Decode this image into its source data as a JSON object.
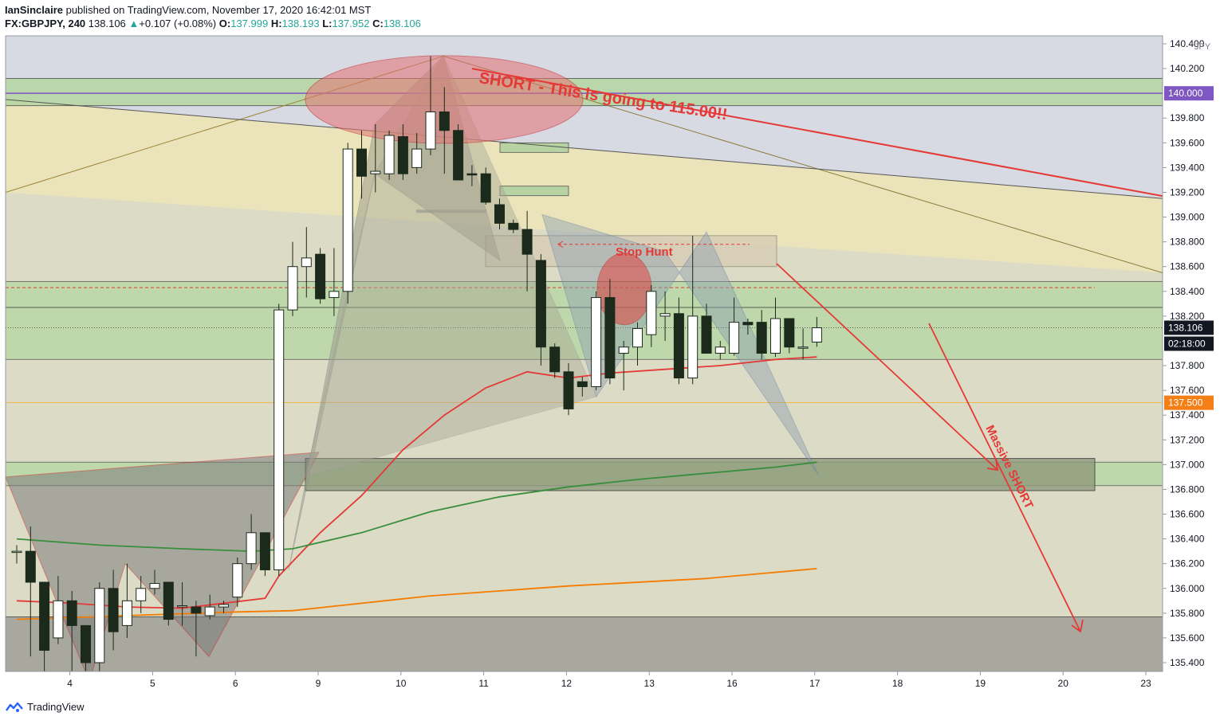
{
  "header": {
    "author": "IanSinclaire",
    "published_text": " published on TradingView.com, November 17, 2020 16:42:01 MST",
    "symbol": "FX:GBPJPY, 240",
    "last": "138.106",
    "change_arrow": "▲",
    "change": "+0.107 (+0.08%)",
    "o_label": "O:",
    "o": "137.999",
    "h_label": "H:",
    "h": "138.193",
    "l_label": "L:",
    "l": "137.952",
    "c_label": "C:",
    "c": "138.106"
  },
  "footer": {
    "brand": "TradingView",
    "logo_icon": "tradingview-logo-icon"
  },
  "chart_data": {
    "type": "candlestick",
    "currency": "JPY",
    "ylim": [
      135.25,
      140.55
    ],
    "y_ticks": [
      "140.400",
      "140.200",
      "139.800",
      "139.600",
      "139.400",
      "139.200",
      "139.000",
      "138.800",
      "138.600",
      "138.400",
      "138.200",
      "137.800",
      "137.600",
      "137.400",
      "137.200",
      "137.000",
      "136.800",
      "136.600",
      "136.400",
      "136.200",
      "136.000",
      "135.800",
      "135.600",
      "135.400"
    ],
    "x_ticks": [
      {
        "label": "4",
        "i": 2
      },
      {
        "label": "5",
        "i": 8
      },
      {
        "label": "6",
        "i": 14
      },
      {
        "label": "9",
        "i": 20
      },
      {
        "label": "10",
        "i": 26
      },
      {
        "label": "11",
        "i": 32
      },
      {
        "label": "12",
        "i": 38
      },
      {
        "label": "13",
        "i": 44
      },
      {
        "label": "16",
        "i": 50
      },
      {
        "label": "17",
        "i": 56
      },
      {
        "label": "18",
        "i": 62
      },
      {
        "label": "19",
        "i": 68
      },
      {
        "label": "20",
        "i": 74
      },
      {
        "label": "23",
        "i": 80
      }
    ],
    "price_badges": [
      {
        "value": "140.000",
        "role": "level",
        "color": "#7e57c2"
      },
      {
        "value": "138.106",
        "role": "last",
        "color": "#131722"
      },
      {
        "value": "02:18:00",
        "role": "countdown",
        "color": "#131722"
      },
      {
        "value": "137.500",
        "role": "level",
        "color": "#f57f17"
      }
    ],
    "candles": [
      [
        136.3,
        136.3,
        136.35,
        136.2
      ],
      [
        136.3,
        136.05,
        136.5,
        135.45
      ],
      [
        136.05,
        135.5,
        136.0,
        135.3
      ],
      [
        135.6,
        135.9,
        136.1,
        135.55
      ],
      [
        135.9,
        135.7,
        135.98,
        135.3
      ],
      [
        135.7,
        135.4,
        135.7,
        135.1
      ],
      [
        135.4,
        136.0,
        136.05,
        135.2
      ],
      [
        136.0,
        135.65,
        136.15,
        135.5
      ],
      [
        135.7,
        135.9,
        136.2,
        135.6
      ],
      [
        135.9,
        136.0,
        136.1,
        135.8
      ],
      [
        136.0,
        136.04,
        136.15,
        135.95
      ],
      [
        136.05,
        135.75,
        136.05,
        135.7
      ],
      [
        135.85,
        135.86,
        136.05,
        135.7
      ],
      [
        135.85,
        135.8,
        135.9,
        135.45
      ],
      [
        135.78,
        135.85,
        135.95,
        135.75
      ],
      [
        135.85,
        135.87,
        135.9,
        135.8
      ],
      [
        135.93,
        136.2,
        136.25,
        135.85
      ],
      [
        136.2,
        136.45,
        136.6,
        136.15
      ],
      [
        136.45,
        136.15,
        136.45,
        136.1
      ],
      [
        136.15,
        138.25,
        138.3,
        136.1
      ],
      [
        138.25,
        138.6,
        138.8,
        138.2
      ],
      [
        138.6,
        138.67,
        138.92,
        138.35
      ],
      [
        138.7,
        138.34,
        138.75,
        138.3
      ],
      [
        138.35,
        138.4,
        138.75,
        138.2
      ],
      [
        138.4,
        139.55,
        139.6,
        138.3
      ],
      [
        139.55,
        139.33,
        139.7,
        139.15
      ],
      [
        139.35,
        139.37,
        139.75,
        139.2
      ],
      [
        139.35,
        139.66,
        139.7,
        139.3
      ],
      [
        139.65,
        139.35,
        139.75,
        139.3
      ],
      [
        139.4,
        139.55,
        139.68,
        139.35
      ],
      [
        139.55,
        139.85,
        140.3,
        139.5
      ],
      [
        139.85,
        139.7,
        140.05,
        139.35
      ],
      [
        139.7,
        139.3,
        139.75,
        139.3
      ],
      [
        139.35,
        139.34,
        139.42,
        139.25
      ],
      [
        139.35,
        139.12,
        139.4,
        139.1
      ],
      [
        139.1,
        138.95,
        139.15,
        138.9
      ],
      [
        138.95,
        138.9,
        138.98,
        138.87
      ],
      [
        138.9,
        138.7,
        139.05,
        138.4
      ],
      [
        138.65,
        137.95,
        138.7,
        137.8
      ],
      [
        137.95,
        137.75,
        137.98,
        137.7
      ],
      [
        137.75,
        137.45,
        137.82,
        137.4
      ],
      [
        137.67,
        137.63,
        137.71,
        137.55
      ],
      [
        137.63,
        138.35,
        138.4,
        137.6
      ],
      [
        138.35,
        137.7,
        138.5,
        137.65
      ],
      [
        137.9,
        137.95,
        138.0,
        137.6
      ],
      [
        137.95,
        138.1,
        138.15,
        137.8
      ],
      [
        138.05,
        138.4,
        138.45,
        137.95
      ],
      [
        138.2,
        138.22,
        138.4,
        138.0
      ],
      [
        138.22,
        137.7,
        138.35,
        137.65
      ],
      [
        137.7,
        138.2,
        138.85,
        137.65
      ],
      [
        138.2,
        137.9,
        138.3,
        137.9
      ],
      [
        137.9,
        137.95,
        138.0,
        137.85
      ],
      [
        137.9,
        138.15,
        138.35,
        137.88
      ],
      [
        138.15,
        138.13,
        138.18,
        138.05
      ],
      [
        138.15,
        137.9,
        138.25,
        137.85
      ],
      [
        137.9,
        138.18,
        138.35,
        137.87
      ],
      [
        138.18,
        137.95,
        138.18,
        137.9
      ],
      [
        137.95,
        137.95,
        138.1,
        137.85
      ],
      [
        137.99,
        138.106,
        138.193,
        137.952
      ]
    ],
    "moving_averages": [
      {
        "color": "#e53935",
        "points": [
          [
            0,
            135.9
          ],
          [
            4,
            135.88
          ],
          [
            8,
            135.85
          ],
          [
            12,
            135.84
          ],
          [
            18,
            135.92
          ],
          [
            19,
            136.1
          ],
          [
            22,
            136.45
          ],
          [
            25,
            136.75
          ],
          [
            28,
            137.12
          ],
          [
            31,
            137.4
          ],
          [
            34,
            137.62
          ],
          [
            37,
            137.75
          ],
          [
            40,
            137.7
          ],
          [
            43,
            137.74
          ],
          [
            47,
            137.77
          ],
          [
            51,
            137.8
          ],
          [
            55,
            137.85
          ],
          [
            58,
            137.87
          ]
        ]
      },
      {
        "color": "#388e3c",
        "points": [
          [
            0,
            136.4
          ],
          [
            6,
            136.35
          ],
          [
            12,
            136.32
          ],
          [
            17,
            136.3
          ],
          [
            20,
            136.32
          ],
          [
            25,
            136.45
          ],
          [
            30,
            136.62
          ],
          [
            35,
            136.74
          ],
          [
            40,
            136.82
          ],
          [
            45,
            136.88
          ],
          [
            50,
            136.93
          ],
          [
            55,
            136.98
          ],
          [
            58,
            137.02
          ]
        ]
      },
      {
        "color": "#f57c00",
        "points": [
          [
            0,
            135.75
          ],
          [
            8,
            135.78
          ],
          [
            16,
            135.81
          ],
          [
            20,
            135.82
          ],
          [
            30,
            135.94
          ],
          [
            40,
            136.02
          ],
          [
            50,
            136.08
          ],
          [
            58,
            136.16
          ]
        ]
      }
    ],
    "annotations": [
      {
        "text": "SHORT - This is going to 115.00!!",
        "color": "#e53935"
      },
      {
        "text": "Stop Hunt",
        "color": "#e53935"
      },
      {
        "text": "Massive SHORT",
        "color": "#e53935"
      }
    ],
    "colors": {
      "bull": "#ffffff",
      "bear": "#1b2a1b",
      "zone_green": "#a5d6a7",
      "zone_grey": "#9e9e9e",
      "accent_red": "#e53935"
    }
  }
}
